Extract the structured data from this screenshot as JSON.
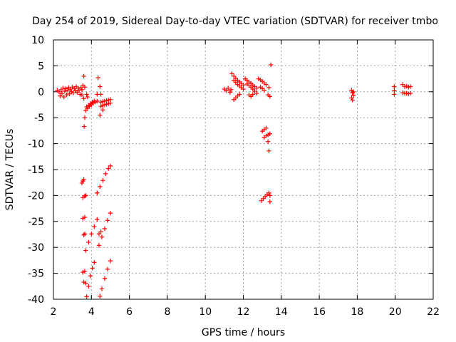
{
  "chart_data": {
    "type": "scatter",
    "title": "Day 254 of 2019, Sidereal Day-to-day VTEC variation (SDTVAR) for receiver tmbo",
    "xlabel": "GPS time / hours",
    "ylabel": "SDTVAR / TECUs",
    "xlim": [
      2,
      22
    ],
    "ylim": [
      -40,
      10
    ],
    "xticks": [
      "2",
      "4",
      "6",
      "8",
      "10",
      "12",
      "14",
      "16",
      "18",
      "20",
      "22"
    ],
    "yticks": [
      "10",
      "5",
      "0",
      "-5",
      "-10",
      "-15",
      "-20",
      "-25",
      "-30",
      "-35",
      "-40"
    ],
    "grid": true,
    "marker": "+",
    "colors": {
      "series": "#ff0000",
      "grid": "#a0a0a0",
      "axis": "#000000"
    },
    "series": [
      {
        "name": "SDTVAR",
        "points": [
          [
            2.2,
            0.3
          ],
          [
            2.3,
            0.0
          ],
          [
            2.35,
            -0.8
          ],
          [
            2.4,
            0.4
          ],
          [
            2.45,
            -0.3
          ],
          [
            2.5,
            0.7
          ],
          [
            2.55,
            -1.0
          ],
          [
            2.6,
            0.1
          ],
          [
            2.65,
            0.6
          ],
          [
            2.7,
            -0.6
          ],
          [
            2.75,
            0.3
          ],
          [
            2.8,
            0.8
          ],
          [
            2.85,
            -0.4
          ],
          [
            2.9,
            0.5
          ],
          [
            2.95,
            0.0
          ],
          [
            3.0,
            0.9
          ],
          [
            3.05,
            -0.2
          ],
          [
            3.1,
            0.6
          ],
          [
            3.15,
            0.2
          ],
          [
            3.2,
            1.0
          ],
          [
            3.25,
            -0.1
          ],
          [
            3.3,
            0.7
          ],
          [
            3.35,
            0.3
          ],
          [
            3.4,
            -0.5
          ],
          [
            3.45,
            0.8
          ],
          [
            3.5,
            0.4
          ],
          [
            3.6,
            3.0
          ],
          [
            3.55,
            1.2
          ],
          [
            3.65,
            0.9
          ],
          [
            3.5,
            -0.6
          ],
          [
            3.6,
            -1.3
          ],
          [
            3.75,
            -0.5
          ],
          [
            3.8,
            -1.0
          ],
          [
            3.62,
            -6.7
          ],
          [
            3.65,
            -5.0
          ],
          [
            3.7,
            -3.6
          ],
          [
            3.8,
            -3.2
          ],
          [
            3.9,
            -2.8
          ],
          [
            4.0,
            -2.5
          ],
          [
            4.1,
            -2.2
          ],
          [
            4.2,
            -2.0
          ],
          [
            4.3,
            -1.8
          ],
          [
            3.75,
            -2.9
          ],
          [
            3.85,
            -2.6
          ],
          [
            3.95,
            -2.3
          ],
          [
            4.05,
            -2.0
          ],
          [
            4.15,
            -1.8
          ],
          [
            4.3,
            -0.5
          ],
          [
            4.35,
            2.7
          ],
          [
            4.45,
            1.0
          ],
          [
            4.5,
            -0.5
          ],
          [
            4.5,
            -2.8
          ],
          [
            4.6,
            -2.6
          ],
          [
            4.7,
            -2.5
          ],
          [
            4.8,
            -2.4
          ],
          [
            4.9,
            -2.3
          ],
          [
            5.0,
            -2.2
          ],
          [
            4.5,
            -2.0
          ],
          [
            4.6,
            -1.9
          ],
          [
            4.7,
            -1.8
          ],
          [
            4.8,
            -1.7
          ],
          [
            4.9,
            -1.6
          ],
          [
            5.0,
            -1.5
          ],
          [
            4.6,
            -3.5
          ],
          [
            4.45,
            -4.5
          ],
          [
            3.5,
            -17.6
          ],
          [
            3.55,
            -17.2
          ],
          [
            3.6,
            -16.9
          ],
          [
            3.55,
            -20.4
          ],
          [
            3.65,
            -20.1
          ],
          [
            3.7,
            -20.0
          ],
          [
            3.55,
            -24.4
          ],
          [
            3.65,
            -24.2
          ],
          [
            3.6,
            -27.6
          ],
          [
            3.65,
            -27.4
          ],
          [
            3.55,
            -34.8
          ],
          [
            3.65,
            -34.6
          ],
          [
            3.6,
            -36.7
          ],
          [
            3.7,
            -36.9
          ],
          [
            3.7,
            -30.6
          ],
          [
            3.85,
            -29.0
          ],
          [
            4.0,
            -27.4
          ],
          [
            4.15,
            -26.0
          ],
          [
            4.3,
            -24.6
          ],
          [
            3.75,
            -39.5
          ],
          [
            3.85,
            -37.5
          ],
          [
            3.95,
            -35.5
          ],
          [
            4.05,
            -34.0
          ],
          [
            4.15,
            -32.9
          ],
          [
            4.3,
            -19.5
          ],
          [
            4.45,
            -18.3
          ],
          [
            4.6,
            -17.1
          ],
          [
            4.75,
            -15.8
          ],
          [
            4.9,
            -14.8
          ],
          [
            5.0,
            -14.3
          ],
          [
            4.4,
            -29.6
          ],
          [
            4.55,
            -28.0
          ],
          [
            4.7,
            -26.4
          ],
          [
            4.85,
            -24.8
          ],
          [
            5.0,
            -23.4
          ],
          [
            4.45,
            -39.4
          ],
          [
            4.55,
            -38.0
          ],
          [
            4.7,
            -36.0
          ],
          [
            4.85,
            -34.2
          ],
          [
            5.0,
            -32.6
          ],
          [
            4.4,
            -27.4
          ],
          [
            4.5,
            -27.0
          ],
          [
            11.0,
            0.5
          ],
          [
            11.1,
            0.2
          ],
          [
            11.2,
            0.7
          ],
          [
            11.3,
            -0.1
          ],
          [
            11.35,
            0.4
          ],
          [
            11.4,
            3.5
          ],
          [
            11.5,
            3.0
          ],
          [
            11.6,
            2.6
          ],
          [
            11.7,
            2.2
          ],
          [
            11.8,
            1.9
          ],
          [
            11.9,
            1.6
          ],
          [
            12.0,
            1.3
          ],
          [
            11.5,
            2.2
          ],
          [
            11.6,
            1.8
          ],
          [
            11.7,
            1.4
          ],
          [
            11.8,
            1.1
          ],
          [
            11.9,
            0.8
          ],
          [
            12.0,
            0.5
          ],
          [
            11.5,
            -1.5
          ],
          [
            11.6,
            -1.2
          ],
          [
            11.7,
            -0.8
          ],
          [
            11.8,
            -0.5
          ],
          [
            12.1,
            2.5
          ],
          [
            12.2,
            2.2
          ],
          [
            12.3,
            1.9
          ],
          [
            12.4,
            1.6
          ],
          [
            12.5,
            1.3
          ],
          [
            12.6,
            1.0
          ],
          [
            12.7,
            0.7
          ],
          [
            12.2,
            1.5
          ],
          [
            12.3,
            1.2
          ],
          [
            12.4,
            0.9
          ],
          [
            12.5,
            0.5
          ],
          [
            12.6,
            0.1
          ],
          [
            12.7,
            -0.3
          ],
          [
            12.3,
            -0.6
          ],
          [
            12.4,
            -0.9
          ],
          [
            12.5,
            -0.5
          ],
          [
            12.8,
            2.5
          ],
          [
            12.9,
            2.3
          ],
          [
            13.0,
            2.0
          ],
          [
            13.1,
            1.7
          ],
          [
            13.2,
            1.4
          ],
          [
            12.9,
            0.9
          ],
          [
            13.0,
            0.6
          ],
          [
            13.1,
            0.3
          ],
          [
            13.3,
            -0.6
          ],
          [
            13.4,
            -0.9
          ],
          [
            13.35,
            0.8
          ],
          [
            13.45,
            5.2
          ],
          [
            13.0,
            -7.6
          ],
          [
            13.1,
            -7.3
          ],
          [
            13.2,
            -7.0
          ],
          [
            13.1,
            -8.8
          ],
          [
            13.2,
            -8.5
          ],
          [
            13.3,
            -8.3
          ],
          [
            13.4,
            -8.1
          ],
          [
            13.3,
            -9.6
          ],
          [
            13.35,
            -11.4
          ],
          [
            12.95,
            -21.0
          ],
          [
            13.05,
            -20.6
          ],
          [
            13.15,
            -20.2
          ],
          [
            13.25,
            -19.8
          ],
          [
            13.35,
            -19.5
          ],
          [
            13.4,
            -20.0
          ],
          [
            13.4,
            -21.2
          ],
          [
            17.7,
            0.3
          ],
          [
            17.75,
            -0.2
          ],
          [
            17.8,
            -0.7
          ],
          [
            17.7,
            -1.2
          ],
          [
            17.75,
            -1.6
          ],
          [
            17.8,
            0.0
          ],
          [
            19.95,
            1.0
          ],
          [
            19.95,
            0.2
          ],
          [
            19.95,
            -0.5
          ],
          [
            20.4,
            1.4
          ],
          [
            20.5,
            1.0
          ],
          [
            20.6,
            1.1
          ],
          [
            20.7,
            0.9
          ],
          [
            20.8,
            1.0
          ],
          [
            20.4,
            -0.2
          ],
          [
            20.5,
            -0.3
          ],
          [
            20.6,
            -0.3
          ],
          [
            20.7,
            -0.4
          ],
          [
            20.8,
            -0.3
          ]
        ]
      }
    ]
  }
}
